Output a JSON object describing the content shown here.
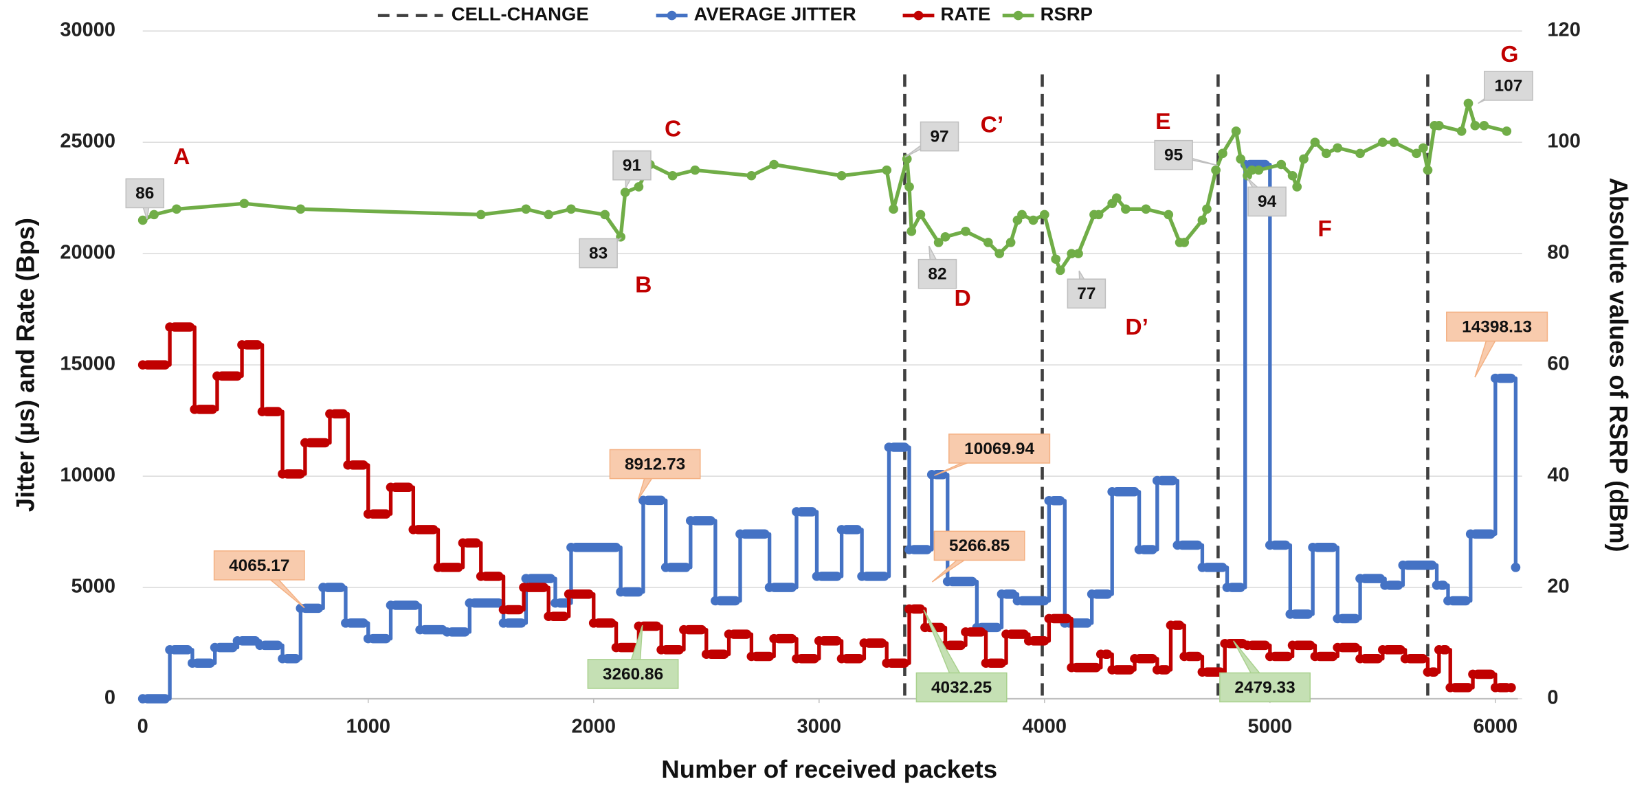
{
  "chart_data": {
    "type": "line",
    "x_label": "Number of received packets",
    "y_label": "Jitter (µs) and Rate (Bps)",
    "y2_label": "Absolute values of RSRP (dBm)",
    "xlim": [
      0,
      6100
    ],
    "xticks": [
      0,
      1000,
      2000,
      3000,
      4000,
      5000,
      6000
    ],
    "ylim": [
      0,
      30000
    ],
    "yticks": [
      0,
      5000,
      10000,
      15000,
      20000,
      25000,
      30000
    ],
    "y2lim": [
      0,
      120
    ],
    "y2ticks": [
      0,
      20,
      40,
      60,
      80,
      100,
      120
    ],
    "grid": true,
    "legend": "top",
    "cell_change": {
      "name": "CELL-CHANGE",
      "color": "#404040",
      "x": [
        3380,
        3990,
        4770,
        5700
      ]
    },
    "series": [
      {
        "name": "AVERAGE JITTER",
        "color": "#4472c4",
        "step": true,
        "x": [
          0,
          120,
          220,
          320,
          420,
          520,
          620,
          700,
          800,
          900,
          1000,
          1100,
          1230,
          1350,
          1450,
          1600,
          1700,
          1830,
          1900,
          2120,
          2220,
          2320,
          2430,
          2540,
          2650,
          2780,
          2900,
          2990,
          3100,
          3190,
          3310,
          3400,
          3500,
          3570,
          3700,
          3810,
          3880,
          4020,
          4090,
          4210,
          4300,
          4420,
          4500,
          4590,
          4700,
          4810,
          4890,
          5000,
          5090,
          5190,
          5300,
          5400,
          5510,
          5590,
          5740,
          5790,
          5890,
          6000,
          6090
        ],
        "values": [
          0,
          2200,
          1600,
          2300,
          2600,
          2400,
          1800,
          4065.17,
          5000,
          3400,
          2700,
          4200,
          3100,
          3000,
          4300,
          3400,
          5400,
          4300,
          6800,
          4800,
          8912.73,
          5900,
          8000,
          4400,
          7400,
          5000,
          8400,
          5500,
          7600,
          5500,
          11300,
          6700,
          10069.94,
          5266.85,
          3200,
          4700,
          4400,
          8900,
          3400,
          4700,
          9300,
          6700,
          9800,
          6900,
          5900,
          5000,
          24000,
          6900,
          3800,
          6800,
          3600,
          5400,
          5100,
          6000,
          5100,
          4400,
          7400,
          14398.13,
          5900
        ]
      },
      {
        "name": "RATE",
        "color": "#c00000",
        "step": true,
        "x": [
          0,
          120,
          230,
          330,
          440,
          530,
          620,
          720,
          830,
          910,
          1000,
          1100,
          1200,
          1310,
          1420,
          1500,
          1600,
          1690,
          1800,
          1890,
          2000,
          2100,
          2200,
          2300,
          2400,
          2500,
          2600,
          2700,
          2800,
          2900,
          3000,
          3100,
          3200,
          3300,
          3400,
          3470,
          3560,
          3650,
          3740,
          3830,
          3930,
          4020,
          4120,
          4250,
          4300,
          4400,
          4500,
          4560,
          4620,
          4700,
          4800,
          4900,
          5000,
          5100,
          5200,
          5300,
          5400,
          5500,
          5600,
          5700,
          5750,
          5800,
          5900,
          6000,
          6070
        ],
        "values": [
          15000,
          16700,
          13000,
          14500,
          15900,
          12900,
          10100,
          11500,
          12800,
          10500,
          8300,
          9500,
          7600,
          5900,
          7000,
          5500,
          4000,
          5000,
          3700,
          4700,
          3400,
          2300,
          3260.86,
          2200,
          3100,
          2000,
          2900,
          1900,
          2700,
          1800,
          2600,
          1800,
          2500,
          1600,
          4032.25,
          3200,
          2400,
          3000,
          1600,
          2900,
          2600,
          3600,
          1400,
          2000,
          1300,
          1800,
          1300,
          3300,
          1900,
          1200,
          2479.33,
          2400,
          1900,
          2400,
          1900,
          2300,
          1800,
          2200,
          1800,
          1200,
          2200,
          500,
          1100,
          500,
          500
        ]
      },
      {
        "name": "RSRP",
        "color": "#70ad47",
        "axis": "y2",
        "step": false,
        "x": [
          0,
          50,
          150,
          450,
          700,
          1500,
          1700,
          1800,
          1900,
          2050,
          2120,
          2140,
          2200,
          2250,
          2350,
          2450,
          2700,
          2800,
          3100,
          3300,
          3330,
          3390,
          3400,
          3410,
          3450,
          3530,
          3560,
          3650,
          3750,
          3800,
          3850,
          3880,
          3900,
          3950,
          4000,
          4050,
          4070,
          4120,
          4150,
          4220,
          4240,
          4300,
          4320,
          4360,
          4450,
          4550,
          4600,
          4620,
          4700,
          4720,
          4760,
          4790,
          4850,
          4870,
          4900,
          4920,
          4950,
          5050,
          5100,
          5120,
          5150,
          5200,
          5250,
          5300,
          5400,
          5500,
          5550,
          5650,
          5680,
          5700,
          5730,
          5750,
          5850,
          5880,
          5910,
          5950,
          6050
        ],
        "values": [
          86,
          87,
          88,
          89,
          88,
          87,
          88,
          87,
          88,
          87,
          83,
          91,
          92,
          96,
          94,
          95,
          94,
          96,
          94,
          95,
          88,
          97,
          92,
          84,
          87,
          82,
          83,
          84,
          82,
          80,
          82,
          86,
          87,
          86,
          87,
          79,
          77,
          80,
          80,
          87,
          87,
          89,
          90,
          88,
          88,
          87,
          82,
          82,
          86,
          88,
          95,
          98,
          102,
          97,
          94,
          95,
          95,
          96,
          94,
          92,
          97,
          100,
          98,
          99,
          98,
          100,
          100,
          98,
          99,
          95,
          103,
          103,
          102,
          107,
          103,
          103,
          102
        ]
      }
    ],
    "annotations": [
      {
        "text": "86",
        "kind": "gray"
      },
      {
        "text": "91",
        "kind": "gray"
      },
      {
        "text": "83",
        "kind": "gray"
      },
      {
        "text": "97",
        "kind": "gray"
      },
      {
        "text": "82",
        "kind": "gray"
      },
      {
        "text": "77",
        "kind": "gray"
      },
      {
        "text": "95",
        "kind": "gray"
      },
      {
        "text": "94",
        "kind": "gray"
      },
      {
        "text": "107",
        "kind": "gray"
      },
      {
        "text": "4065.17",
        "kind": "orange"
      },
      {
        "text": "8912.73",
        "kind": "orange"
      },
      {
        "text": "10069.94",
        "kind": "orange"
      },
      {
        "text": "5266.85",
        "kind": "orange"
      },
      {
        "text": "14398.13",
        "kind": "orange"
      },
      {
        "text": "3260.86",
        "kind": "green"
      },
      {
        "text": "4032.25",
        "kind": "green"
      },
      {
        "text": "2479.33",
        "kind": "green"
      },
      {
        "text": "A",
        "kind": "letter"
      },
      {
        "text": "B",
        "kind": "letter"
      },
      {
        "text": "C",
        "kind": "letter"
      },
      {
        "text": "C’",
        "kind": "letter"
      },
      {
        "text": "D",
        "kind": "letter"
      },
      {
        "text": "D’",
        "kind": "letter"
      },
      {
        "text": "E",
        "kind": "letter"
      },
      {
        "text": "F",
        "kind": "letter"
      },
      {
        "text": "G",
        "kind": "letter"
      }
    ]
  }
}
